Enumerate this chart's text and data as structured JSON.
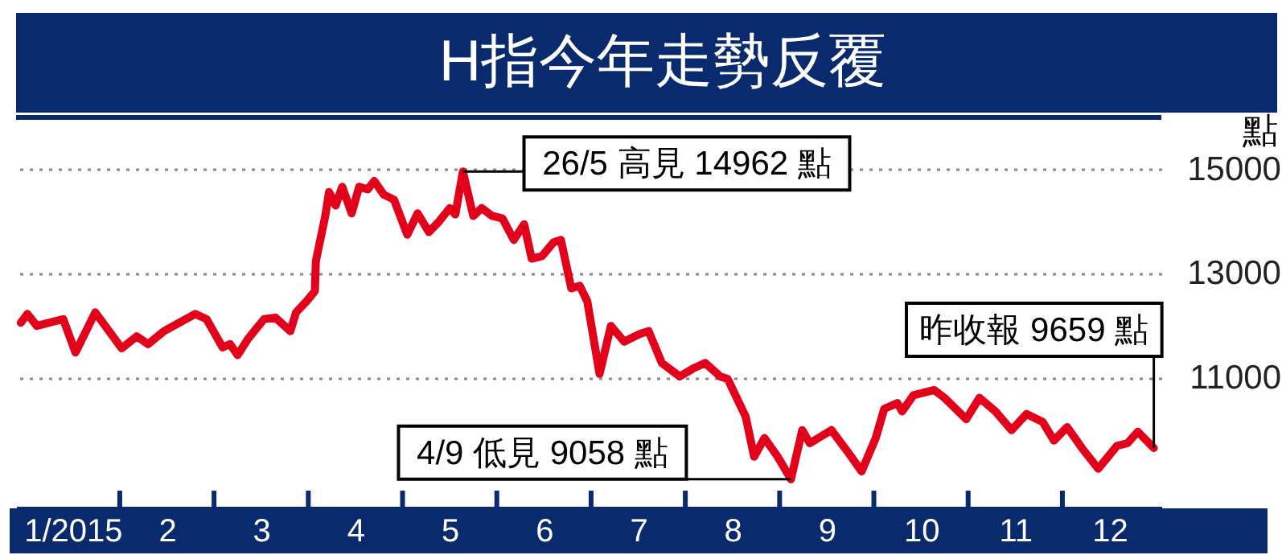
{
  "chart_data": {
    "type": "line",
    "title": "H指今年走勢反覆",
    "ylabel": "點",
    "series": [
      {
        "color": "#e3001b",
        "x": [
          0.95,
          1.02,
          1.12,
          1.4,
          1.53,
          1.74,
          2.02,
          2.18,
          2.3,
          2.47,
          2.66,
          2.8,
          2.92,
          3.09,
          3.17,
          3.25,
          3.36,
          3.53,
          3.65,
          3.81,
          3.87,
          3.98,
          4.07,
          4.08,
          4.18,
          4.22,
          4.29,
          4.36,
          4.46,
          4.54,
          4.63,
          4.7,
          4.8,
          4.91,
          5.05,
          5.16,
          5.28,
          5.39,
          5.5,
          5.56,
          5.64,
          5.75,
          5.84,
          5.95,
          6.06,
          6.18,
          6.29,
          6.37,
          6.48,
          6.6,
          6.68,
          6.79,
          6.88,
          6.96,
          7.09,
          7.21,
          7.35,
          7.52,
          7.61,
          7.75,
          7.94,
          8.08,
          8.21,
          8.37,
          8.45,
          8.64,
          8.73,
          8.84,
          8.98,
          9.12,
          9.24,
          9.32,
          9.55,
          9.74,
          9.87,
          10.02,
          10.11,
          10.25,
          10.3,
          10.42,
          10.64,
          10.75,
          10.98,
          11.12,
          11.29,
          11.46,
          11.62,
          11.79,
          11.91,
          12.05,
          12.21,
          12.38,
          12.58,
          12.69,
          12.8,
          12.97
        ],
        "values": [
          12060,
          12230,
          12000,
          12130,
          11490,
          12260,
          11570,
          11800,
          11650,
          11900,
          12090,
          12230,
          12130,
          11590,
          11650,
          11440,
          11750,
          12130,
          12160,
          11900,
          12260,
          12470,
          12670,
          13240,
          14110,
          14570,
          14310,
          14670,
          14160,
          14670,
          14620,
          14780,
          14520,
          14420,
          13750,
          14160,
          13800,
          14010,
          14260,
          14140,
          14962,
          14110,
          14260,
          14110,
          14060,
          13650,
          13950,
          13290,
          13340,
          13600,
          13650,
          12720,
          12770,
          12470,
          11080,
          12000,
          11700,
          11850,
          11900,
          11290,
          11030,
          11180,
          11290,
          11030,
          10980,
          10260,
          9490,
          9850,
          9490,
          9058,
          10000,
          9750,
          10000,
          9540,
          9210,
          9850,
          10410,
          10520,
          10360,
          10670,
          10770,
          10620,
          10210,
          10620,
          10360,
          10000,
          10310,
          10160,
          9800,
          10060,
          9650,
          9260,
          9700,
          9750,
          9970,
          9659
        ]
      }
    ],
    "xlim": [
      0.9,
      13.05
    ],
    "xticks": [
      {
        "value": 1.5,
        "label": "1/2015"
      },
      {
        "value": 2,
        "label": null
      },
      {
        "value": 2.5,
        "label": "2"
      },
      {
        "value": 3,
        "label": null
      },
      {
        "value": 3.5,
        "label": "3"
      },
      {
        "value": 4,
        "label": null
      },
      {
        "value": 4.5,
        "label": "4"
      },
      {
        "value": 5,
        "label": null
      },
      {
        "value": 5.5,
        "label": "5"
      },
      {
        "value": 6,
        "label": null
      },
      {
        "value": 6.5,
        "label": "6"
      },
      {
        "value": 7,
        "label": null
      },
      {
        "value": 7.5,
        "label": "7"
      },
      {
        "value": 8,
        "label": null
      },
      {
        "value": 8.5,
        "label": "8"
      },
      {
        "value": 9,
        "label": null
      },
      {
        "value": 9.5,
        "label": "9"
      },
      {
        "value": 10,
        "label": null
      },
      {
        "value": 10.5,
        "label": "10"
      },
      {
        "value": 11,
        "label": null
      },
      {
        "value": 11.5,
        "label": "11"
      },
      {
        "value": 12,
        "label": null
      },
      {
        "value": 12.5,
        "label": "12"
      }
    ],
    "ylim": [
      8500,
      16000
    ],
    "yticks": [
      11000,
      13000,
      15000
    ],
    "grid": "y",
    "line_style": "solid",
    "marker": "none",
    "annotations": [
      {
        "text": "26/5 高見 14962 點",
        "x": 5.64,
        "y": 14962
      },
      {
        "text": "4/9 低見 9058 點",
        "x": 9.12,
        "y": 9058
      },
      {
        "text": "昨收報 9659 點",
        "x": 12.97,
        "y": 9659
      }
    ]
  }
}
